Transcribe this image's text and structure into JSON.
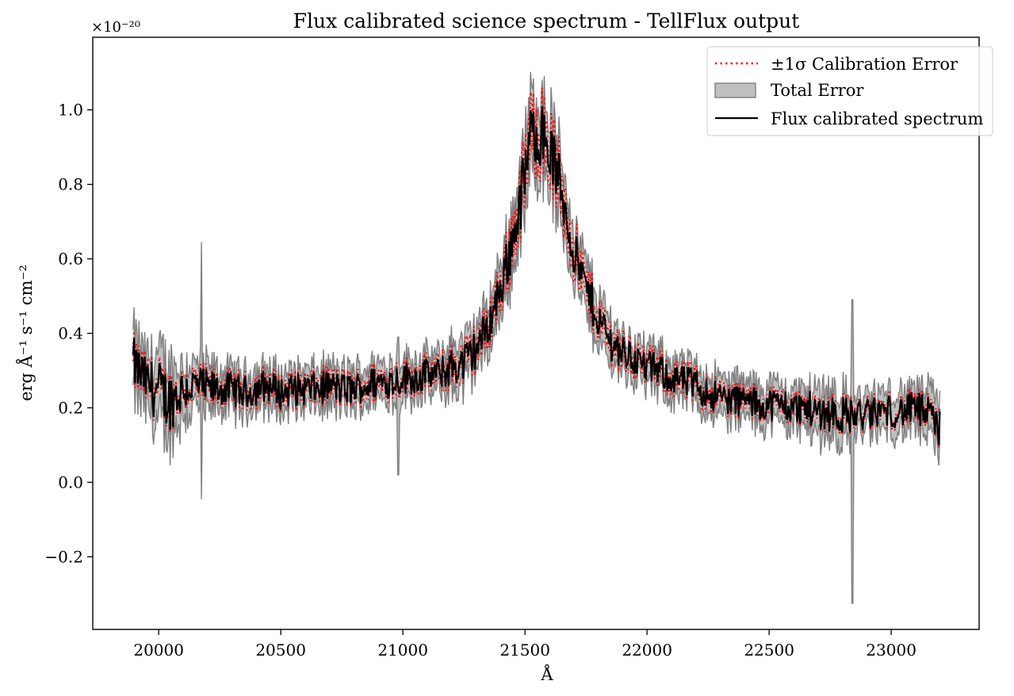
{
  "chart_data": {
    "type": "line",
    "title": "Flux calibrated science spectrum - TellFlux output",
    "xlabel": "Å",
    "ylabel": "erg Å⁻¹ s⁻¹ cm⁻²",
    "y_offset_label": "×10⁻²⁰",
    "xlim": [
      19730,
      23360
    ],
    "ylim": [
      -0.395,
      1.195
    ],
    "x_ticks": [
      20000,
      20500,
      21000,
      21500,
      22000,
      22500,
      23000
    ],
    "x_tick_labels": [
      "20000",
      "20500",
      "21000",
      "21500",
      "22000",
      "22500",
      "23000"
    ],
    "y_ticks": [
      -0.2,
      0.0,
      0.2,
      0.4,
      0.6,
      0.8,
      1.0
    ],
    "y_tick_labels": [
      "−0.2",
      "0.0",
      "0.2",
      "0.4",
      "0.6",
      "0.8",
      "1.0"
    ],
    "grid": false,
    "legend_position": "top-right",
    "legend": [
      {
        "label": "±1σ Calibration Error",
        "style": "dotted",
        "color": "#ff0000"
      },
      {
        "label": "Total Error",
        "style": "fill",
        "color": "#bfbfbf",
        "edge": "#808080"
      },
      {
        "label": "Flux calibrated spectrum",
        "style": "solid",
        "color": "#000000"
      }
    ],
    "series": [
      {
        "name": "Flux calibrated spectrum",
        "x": [
          19895,
          19950,
          20000,
          20050,
          20100,
          20150,
          20200,
          20250,
          20300,
          20350,
          20400,
          20450,
          20500,
          20550,
          20600,
          20650,
          20700,
          20750,
          20800,
          20850,
          20900,
          20950,
          21000,
          21050,
          21100,
          21150,
          21200,
          21250,
          21300,
          21350,
          21400,
          21450,
          21500,
          21520,
          21550,
          21600,
          21650,
          21700,
          21750,
          21800,
          21850,
          21900,
          21950,
          22000,
          22050,
          22100,
          22150,
          22200,
          22250,
          22300,
          22350,
          22400,
          22450,
          22500,
          22550,
          22600,
          22650,
          22700,
          22750,
          22800,
          22850,
          22900,
          22950,
          23000,
          23050,
          23100,
          23150,
          23200
        ],
        "y": [
          0.32,
          0.27,
          0.24,
          0.22,
          0.25,
          0.26,
          0.25,
          0.25,
          0.25,
          0.24,
          0.25,
          0.26,
          0.24,
          0.25,
          0.25,
          0.25,
          0.26,
          0.25,
          0.25,
          0.26,
          0.27,
          0.27,
          0.28,
          0.28,
          0.29,
          0.29,
          0.31,
          0.32,
          0.36,
          0.42,
          0.52,
          0.65,
          0.82,
          0.92,
          0.95,
          0.9,
          0.78,
          0.62,
          0.52,
          0.44,
          0.38,
          0.35,
          0.33,
          0.31,
          0.3,
          0.28,
          0.27,
          0.26,
          0.24,
          0.23,
          0.22,
          0.22,
          0.21,
          0.21,
          0.21,
          0.2,
          0.2,
          0.19,
          0.19,
          0.18,
          0.18,
          0.18,
          0.19,
          0.19,
          0.19,
          0.2,
          0.18,
          0.14
        ]
      }
    ],
    "error_band": {
      "name": "Total Error",
      "half_width": [
        0.08,
        0.07,
        0.1,
        0.09,
        0.07,
        0.06,
        0.06,
        0.05,
        0.05,
        0.05,
        0.05,
        0.05,
        0.05,
        0.05,
        0.05,
        0.05,
        0.05,
        0.05,
        0.05,
        0.05,
        0.05,
        0.05,
        0.05,
        0.05,
        0.05,
        0.05,
        0.06,
        0.06,
        0.06,
        0.06,
        0.07,
        0.08,
        0.1,
        0.1,
        0.1,
        0.1,
        0.09,
        0.07,
        0.07,
        0.06,
        0.06,
        0.05,
        0.05,
        0.05,
        0.05,
        0.05,
        0.05,
        0.05,
        0.05,
        0.05,
        0.05,
        0.05,
        0.05,
        0.05,
        0.05,
        0.05,
        0.05,
        0.06,
        0.06,
        0.06,
        0.05,
        0.05,
        0.05,
        0.05,
        0.05,
        0.05,
        0.06,
        0.07
      ]
    },
    "calibration_error_fraction": 0.05,
    "annotations": [
      {
        "note": "spike",
        "x": 20175,
        "y_top": 0.645,
        "y_bottom": -0.045
      },
      {
        "note": "spike",
        "x": 22840,
        "y_top": 0.49,
        "y_bottom": -0.325
      },
      {
        "note": "dip",
        "x": 20980,
        "y_top": 0.39,
        "y_bottom": 0.02
      }
    ]
  }
}
